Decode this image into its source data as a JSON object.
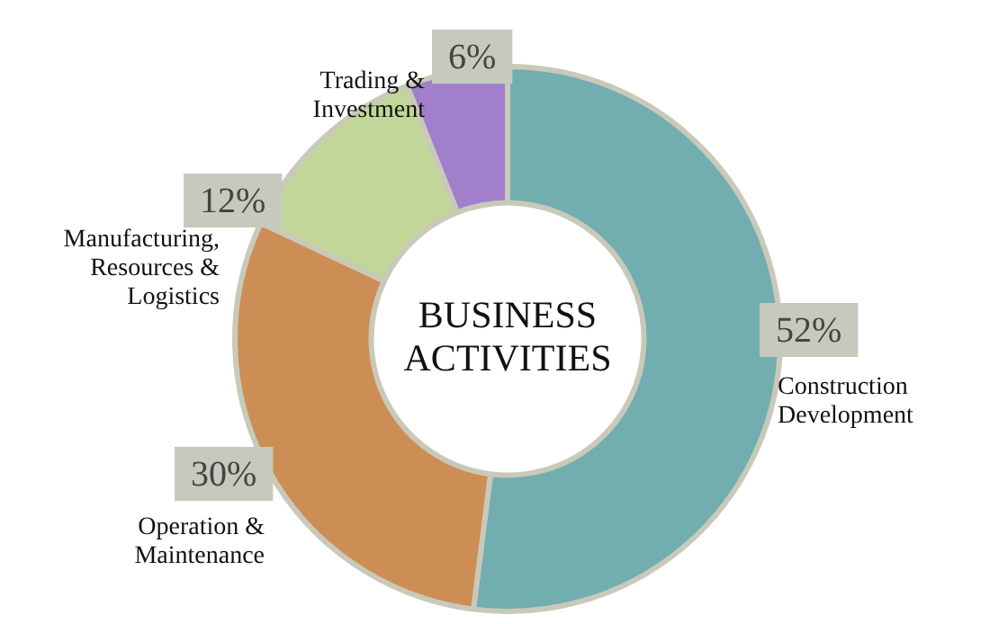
{
  "chart_data": {
    "type": "donut",
    "title": "BUSINESS ACTIVITIES",
    "categories": [
      "Construction Development",
      "Operation & Maintenance",
      "Manufacturing, Resources & Logistics",
      "Trading & Investment"
    ],
    "values": [
      52,
      30,
      12,
      6
    ],
    "value_labels": [
      "52%",
      "30%",
      "12%",
      "6%"
    ],
    "colors": [
      "#72adb0",
      "#cc8e55",
      "#c2d699",
      "#a27fcc"
    ],
    "legend": false
  }
}
